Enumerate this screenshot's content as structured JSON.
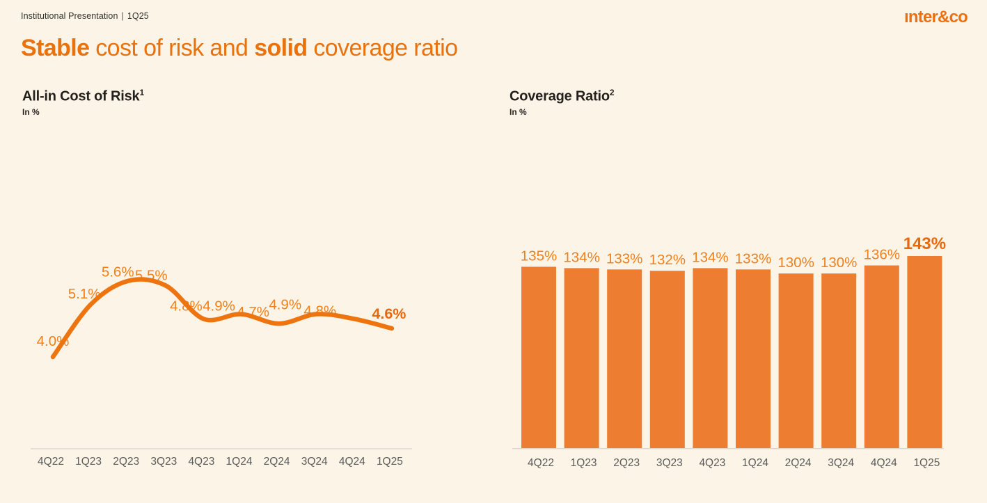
{
  "page": {
    "background": "#FBF4E7"
  },
  "header": {
    "breadcrumb": "Institutional Presentation",
    "separator": "|",
    "period": "1Q25",
    "logo_text": "ınter&co"
  },
  "title": {
    "full": "Stable cost of risk and solid coverage ratio",
    "parts": [
      {
        "text": "Stable",
        "bold": true
      },
      {
        "text": " cost of risk and ",
        "bold": false
      },
      {
        "text": "solid",
        "bold": true
      },
      {
        "text": " coverage ratio",
        "bold": false
      }
    ],
    "color": "#E9720D"
  },
  "chart_data": [
    {
      "type": "line",
      "title": "All-in Cost of Risk",
      "footnote_marker": "1",
      "unit_label": "In %",
      "categories": [
        "4Q22",
        "1Q23",
        "2Q23",
        "3Q23",
        "4Q23",
        "1Q24",
        "2Q24",
        "3Q24",
        "4Q24",
        "1Q25"
      ],
      "values": [
        4.0,
        5.1,
        5.6,
        5.5,
        4.8,
        4.9,
        4.7,
        4.9,
        4.8,
        4.6
      ],
      "labels": [
        "4.0%",
        "5.1%",
        "5.6%",
        "5.5%",
        "4.8%",
        "4.9%",
        "4.7%",
        "4.9%",
        "4.8%",
        "4.6%"
      ],
      "emphasized_index": 9,
      "ylim": [
        3.5,
        6.0
      ],
      "grid": false,
      "legend_position": "none",
      "colors": {
        "line": "#EE7410",
        "label": "#F0801C",
        "label_emphasis": "#E8680B",
        "axis": "#DDD8CB",
        "tick": "#5B5B5B"
      }
    },
    {
      "type": "bar",
      "title": "Coverage Ratio",
      "footnote_marker": "2",
      "unit_label": "In %",
      "categories": [
        "4Q22",
        "1Q23",
        "2Q23",
        "3Q23",
        "4Q23",
        "1Q24",
        "2Q24",
        "3Q24",
        "4Q24",
        "1Q25"
      ],
      "values": [
        135,
        134,
        133,
        132,
        134,
        133,
        130,
        130,
        136,
        143
      ],
      "labels": [
        "135%",
        "134%",
        "133%",
        "132%",
        "134%",
        "133%",
        "130%",
        "130%",
        "136%",
        "143%"
      ],
      "emphasized_index": 9,
      "ylim": [
        0,
        150
      ],
      "grid": false,
      "legend_position": "none",
      "colors": {
        "bar": "#ED7D31",
        "label": "#F0801C",
        "label_emphasis": "#E8680B",
        "axis": "#DBD6C9",
        "tick": "#5B5B5B"
      }
    }
  ]
}
